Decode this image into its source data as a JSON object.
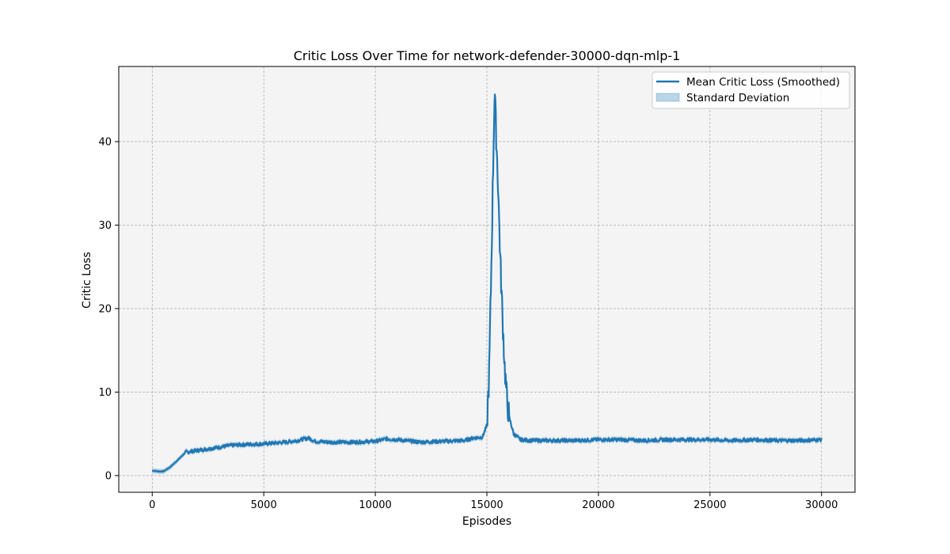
{
  "chart_data": {
    "type": "line",
    "title": "Critic Loss Over Time for network-defender-30000-dqn-mlp-1",
    "xlabel": "Episodes",
    "ylabel": "Critic Loss",
    "xlim": [
      -1500,
      31500
    ],
    "ylim": [
      -2,
      49
    ],
    "xticks": [
      0,
      5000,
      10000,
      15000,
      20000,
      25000,
      30000
    ],
    "yticks": [
      0,
      10,
      20,
      30,
      40
    ],
    "grid": true,
    "legend_position": "top-right",
    "plot_background": "#f4f4f4",
    "series": [
      {
        "name": "Mean Critic Loss (Smoothed)",
        "kind": "line",
        "color": "#1f77b4",
        "x": [
          0,
          300,
          500,
          800,
          1200,
          1500,
          2000,
          2500,
          3000,
          3500,
          4000,
          5000,
          6000,
          6500,
          7000,
          7300,
          8000,
          9000,
          10000,
          10500,
          11000,
          12000,
          13000,
          14000,
          14400,
          14800,
          15000,
          15100,
          15200,
          15300,
          15350,
          15400,
          15500,
          15600,
          15700,
          15800,
          15900,
          16000,
          16200,
          16500,
          17000,
          18000,
          19000,
          20000,
          21000,
          22000,
          23000,
          24000,
          25000,
          26000,
          27000,
          28000,
          29000,
          30000
        ],
        "y": [
          0.6,
          0.5,
          0.5,
          1.0,
          2.0,
          2.8,
          3.0,
          3.2,
          3.4,
          3.6,
          3.7,
          3.8,
          4.0,
          4.2,
          4.5,
          4.1,
          4.0,
          4.0,
          4.1,
          4.4,
          4.3,
          4.0,
          4.1,
          4.2,
          4.5,
          4.6,
          6.0,
          12.0,
          25.0,
          40.0,
          46.5,
          42.0,
          35.0,
          26.0,
          19.0,
          13.0,
          9.0,
          7.0,
          5.0,
          4.3,
          4.2,
          4.2,
          4.2,
          4.3,
          4.3,
          4.2,
          4.3,
          4.3,
          4.3,
          4.2,
          4.3,
          4.2,
          4.2,
          4.3
        ]
      },
      {
        "name": "Standard Deviation",
        "kind": "band",
        "color": "#1f77b4",
        "opacity": 0.3,
        "half_width": 0.3
      }
    ]
  }
}
